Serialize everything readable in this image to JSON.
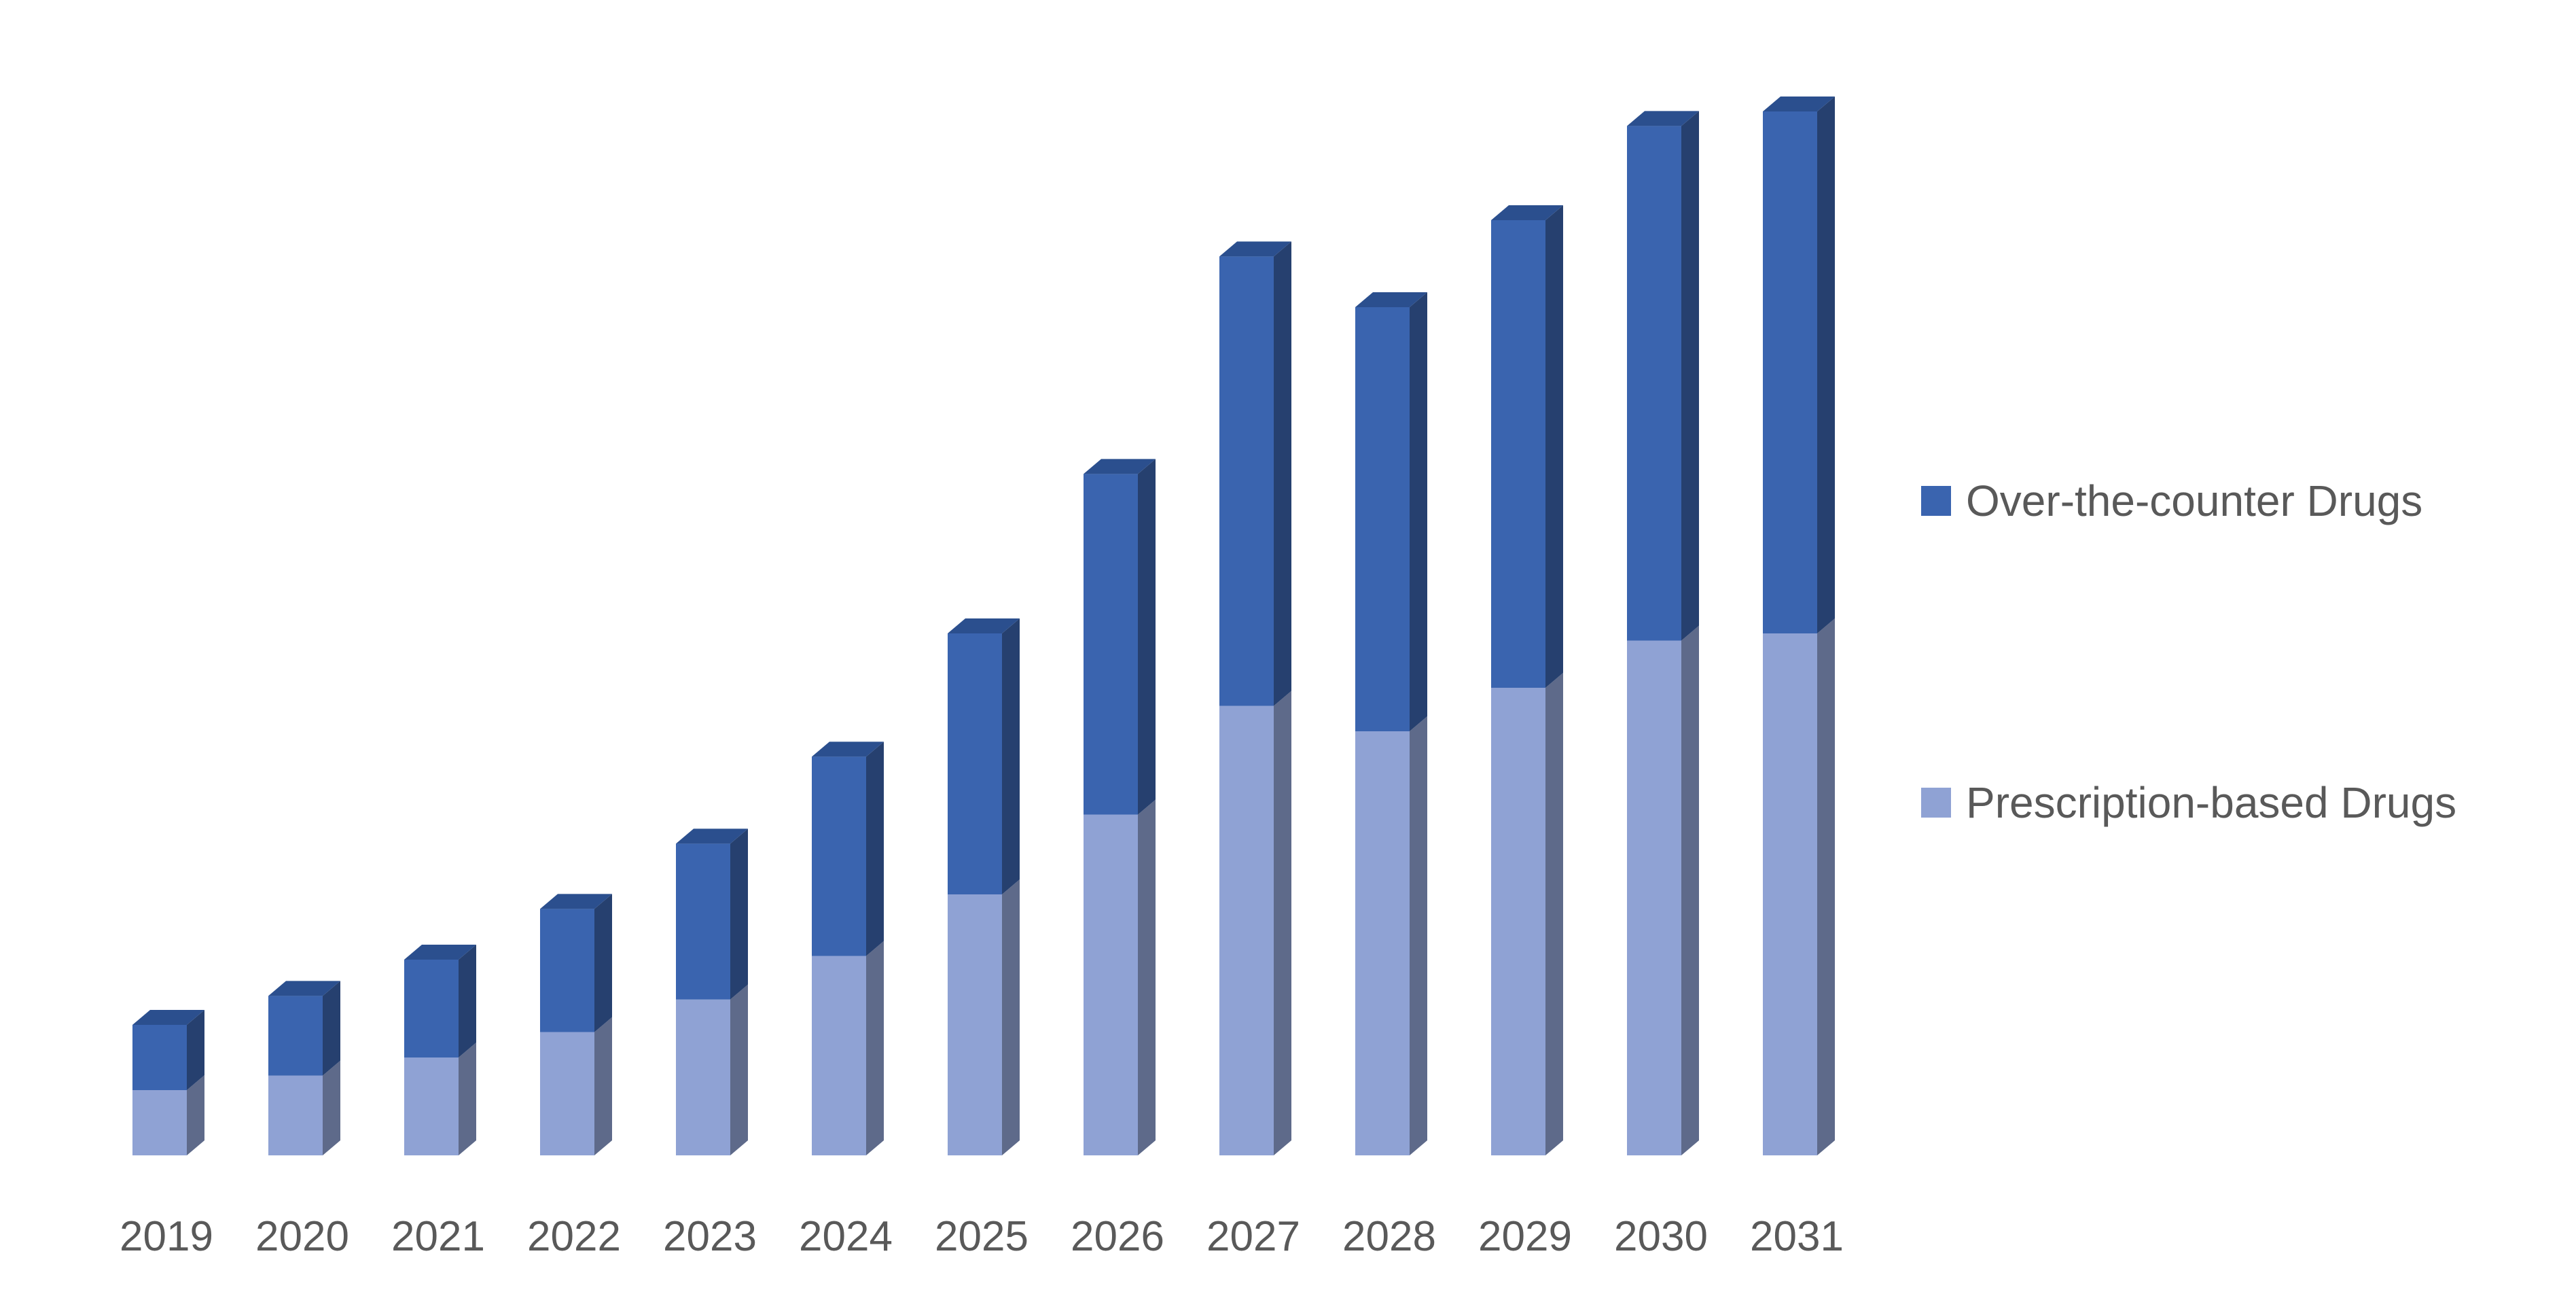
{
  "chart_data": {
    "type": "bar",
    "stacked": true,
    "style": "3d-column",
    "categories": [
      "2019",
      "2020",
      "2021",
      "2022",
      "2023",
      "2024",
      "2025",
      "2026",
      "2027",
      "2028",
      "2029",
      "2030",
      "2031"
    ],
    "series": [
      {
        "name": "Prescription-based Drugs",
        "color": "#8FA2D4",
        "side_color": "#5E6A8A",
        "top_color": "#A9B8E0",
        "values": [
          9,
          11,
          13.5,
          17,
          21.5,
          27.5,
          36,
          47,
          62,
          58.5,
          64.5,
          71,
          72
        ]
      },
      {
        "name": "Over-the-counter Drugs",
        "color": "#3A64AF",
        "side_color": "#26406F",
        "top_color": "#2B4F8E",
        "values": [
          9,
          11,
          13.5,
          17,
          21.5,
          27.5,
          36,
          47,
          62,
          58.5,
          64.5,
          71,
          72
        ]
      }
    ],
    "xlabel": "",
    "ylabel": "",
    "ylim": [
      0,
      150
    ],
    "grid": false,
    "legend": "right"
  },
  "legend": {
    "items": [
      {
        "label": "Over-the-counter Drugs",
        "color": "#3A64AF"
      },
      {
        "label": "Prescription-based Drugs",
        "color": "#8FA2D4"
      }
    ]
  }
}
